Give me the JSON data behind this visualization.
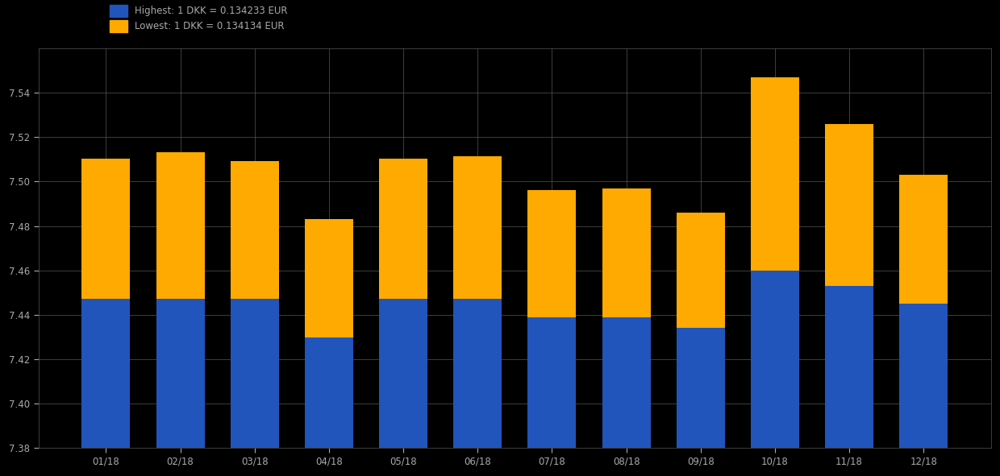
{
  "categories": [
    "01/18",
    "02/18",
    "03/18",
    "04/18",
    "05/18",
    "06/18",
    "07/18",
    "08/18",
    "09/18",
    "10/18",
    "11/18",
    "12/18"
  ],
  "blue_values": [
    7.4472,
    7.4472,
    7.4472,
    7.43,
    7.4472,
    7.4472,
    7.439,
    7.439,
    7.434,
    7.46,
    7.453,
    7.445
  ],
  "yellow_values": [
    0.063,
    0.066,
    0.062,
    0.053,
    0.063,
    0.064,
    0.057,
    0.058,
    0.052,
    0.087,
    0.073,
    0.058
  ],
  "blue_color": "#2255bb",
  "yellow_color": "#ffaa00",
  "background_color": "#000000",
  "grid_color": "#555555",
  "text_color": "#aaaaaa",
  "legend_label_blue": "Highest: 1 DKK = 0.134233 EUR",
  "legend_label_yellow": "Lowest: 1 DKK = 0.134134 EUR",
  "ylim_min": 7.38,
  "ylim_max": 7.56,
  "ytick_values": [
    7.38,
    7.4,
    7.42,
    7.44,
    7.46,
    7.48,
    7.5,
    7.52,
    7.54
  ],
  "ytick_labels": [
    "7.38",
    "7.40",
    "7.42",
    "7.44",
    "7.46",
    "7.48",
    "7.50",
    "7.52",
    "7.54"
  ],
  "bar_width": 0.65,
  "figsize": [
    12.4,
    5.91
  ],
  "dpi": 100
}
